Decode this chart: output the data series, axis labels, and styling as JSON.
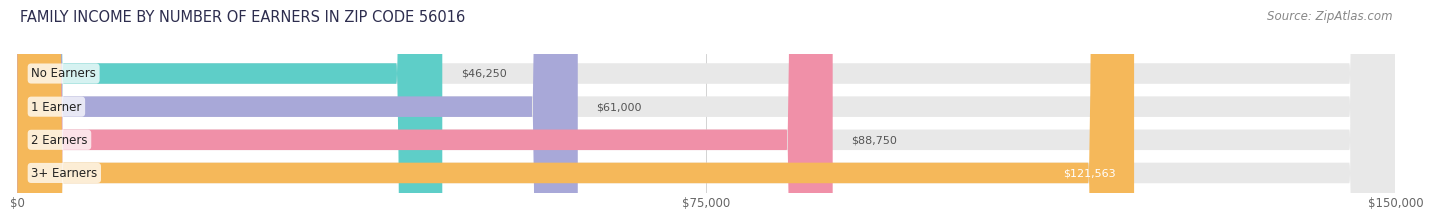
{
  "title": "FAMILY INCOME BY NUMBER OF EARNERS IN ZIP CODE 56016",
  "source": "Source: ZipAtlas.com",
  "categories": [
    "No Earners",
    "1 Earner",
    "2 Earners",
    "3+ Earners"
  ],
  "values": [
    46250,
    61000,
    88750,
    121563
  ],
  "bar_colors": [
    "#5ecec8",
    "#a8a8d8",
    "#f090a8",
    "#f5b85a"
  ],
  "bar_bg_color": "#e8e8e8",
  "value_labels": [
    "$46,250",
    "$61,000",
    "$88,750",
    "$121,563"
  ],
  "xlim": [
    0,
    150000
  ],
  "xticks": [
    0,
    75000,
    150000
  ],
  "xticklabels": [
    "$0",
    "$75,000",
    "$150,000"
  ],
  "background_color": "#ffffff",
  "title_fontsize": 10.5,
  "source_fontsize": 8.5,
  "label_fontsize": 8.5,
  "value_fontsize": 8.0
}
